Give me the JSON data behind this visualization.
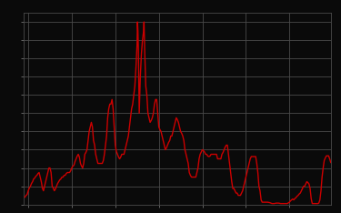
{
  "title": "",
  "background_color": "#0a0a0a",
  "plot_bg_color": "#0a0a0a",
  "line_color": "#cc0000",
  "line_width": 1.0,
  "grid_color": "#4a4a4a",
  "grid_linewidth": 0.6,
  "spine_color": "#4a4a4a",
  "ylim": [
    0,
    21
  ],
  "xlim": [
    1954.0,
    2024.5
  ],
  "yticks": [
    0,
    2,
    4,
    6,
    8,
    10,
    12,
    14,
    16,
    18,
    20
  ],
  "xticks": [
    1955,
    1965,
    1975,
    1985,
    1995,
    2005,
    2015
  ],
  "data": [
    [
      1954.25,
      0.8
    ],
    [
      1954.5,
      1.0
    ],
    [
      1954.75,
      1.1
    ],
    [
      1955.0,
      1.5
    ],
    [
      1955.25,
      1.8
    ],
    [
      1955.5,
      2.0
    ],
    [
      1955.75,
      2.3
    ],
    [
      1956.0,
      2.5
    ],
    [
      1956.25,
      2.8
    ],
    [
      1956.5,
      2.9
    ],
    [
      1956.75,
      3.1
    ],
    [
      1957.0,
      3.2
    ],
    [
      1957.25,
      3.4
    ],
    [
      1957.5,
      3.5
    ],
    [
      1957.75,
      3.0
    ],
    [
      1958.0,
      2.5
    ],
    [
      1958.25,
      1.8
    ],
    [
      1958.5,
      1.5
    ],
    [
      1958.75,
      2.0
    ],
    [
      1959.0,
      2.5
    ],
    [
      1959.25,
      3.0
    ],
    [
      1959.5,
      3.5
    ],
    [
      1959.75,
      4.0
    ],
    [
      1960.0,
      4.0
    ],
    [
      1960.25,
      3.5
    ],
    [
      1960.5,
      2.0
    ],
    [
      1960.75,
      1.8
    ],
    [
      1961.0,
      1.5
    ],
    [
      1961.25,
      1.7
    ],
    [
      1961.5,
      2.0
    ],
    [
      1961.75,
      2.3
    ],
    [
      1962.0,
      2.5
    ],
    [
      1962.25,
      2.7
    ],
    [
      1962.5,
      2.8
    ],
    [
      1962.75,
      3.0
    ],
    [
      1963.0,
      3.0
    ],
    [
      1963.25,
      3.2
    ],
    [
      1963.5,
      3.2
    ],
    [
      1963.75,
      3.4
    ],
    [
      1964.0,
      3.5
    ],
    [
      1964.25,
      3.5
    ],
    [
      1964.5,
      3.5
    ],
    [
      1964.75,
      3.7
    ],
    [
      1965.0,
      4.0
    ],
    [
      1965.25,
      4.2
    ],
    [
      1965.5,
      4.3
    ],
    [
      1965.75,
      4.7
    ],
    [
      1966.0,
      5.0
    ],
    [
      1966.25,
      5.3
    ],
    [
      1966.5,
      5.5
    ],
    [
      1966.75,
      5.2
    ],
    [
      1967.0,
      4.5
    ],
    [
      1967.25,
      4.2
    ],
    [
      1967.5,
      4.0
    ],
    [
      1967.75,
      4.5
    ],
    [
      1968.0,
      5.5
    ],
    [
      1968.25,
      5.7
    ],
    [
      1968.5,
      6.0
    ],
    [
      1968.75,
      7.0
    ],
    [
      1969.0,
      8.0
    ],
    [
      1969.25,
      8.5
    ],
    [
      1969.5,
      9.0
    ],
    [
      1969.75,
      8.5
    ],
    [
      1970.0,
      7.0
    ],
    [
      1970.25,
      6.5
    ],
    [
      1970.5,
      5.5
    ],
    [
      1970.75,
      5.0
    ],
    [
      1971.0,
      4.5
    ],
    [
      1971.25,
      4.5
    ],
    [
      1971.5,
      4.5
    ],
    [
      1971.75,
      4.5
    ],
    [
      1972.0,
      4.5
    ],
    [
      1972.25,
      4.8
    ],
    [
      1972.5,
      5.5
    ],
    [
      1972.75,
      6.5
    ],
    [
      1973.0,
      7.5
    ],
    [
      1973.25,
      9.5
    ],
    [
      1973.5,
      10.5
    ],
    [
      1973.75,
      11.0
    ],
    [
      1974.0,
      11.0
    ],
    [
      1974.25,
      11.5
    ],
    [
      1974.5,
      10.5
    ],
    [
      1974.75,
      8.5
    ],
    [
      1975.0,
      6.5
    ],
    [
      1975.25,
      5.8
    ],
    [
      1975.5,
      5.5
    ],
    [
      1975.75,
      5.2
    ],
    [
      1976.0,
      5.0
    ],
    [
      1976.25,
      5.2
    ],
    [
      1976.5,
      5.5
    ],
    [
      1976.75,
      5.5
    ],
    [
      1977.0,
      5.5
    ],
    [
      1977.25,
      6.0
    ],
    [
      1977.5,
      6.5
    ],
    [
      1977.75,
      7.0
    ],
    [
      1978.0,
      7.5
    ],
    [
      1978.25,
      8.5
    ],
    [
      1978.5,
      9.5
    ],
    [
      1978.75,
      10.5
    ],
    [
      1979.0,
      11.0
    ],
    [
      1979.25,
      12.0
    ],
    [
      1979.5,
      13.0
    ],
    [
      1979.75,
      15.0
    ],
    [
      1980.0,
      17.5
    ],
    [
      1980.1,
      20.0
    ],
    [
      1980.2,
      19.0
    ],
    [
      1980.3,
      17.0
    ],
    [
      1980.5,
      10.0
    ],
    [
      1980.75,
      14.0
    ],
    [
      1981.0,
      16.5
    ],
    [
      1981.25,
      18.0
    ],
    [
      1981.5,
      19.0
    ],
    [
      1981.6,
      20.0
    ],
    [
      1981.75,
      17.0
    ],
    [
      1982.0,
      13.0
    ],
    [
      1982.25,
      12.0
    ],
    [
      1982.5,
      10.0
    ],
    [
      1982.75,
      9.5
    ],
    [
      1983.0,
      9.0
    ],
    [
      1983.25,
      9.2
    ],
    [
      1983.5,
      9.5
    ],
    [
      1983.75,
      10.0
    ],
    [
      1984.0,
      11.0
    ],
    [
      1984.25,
      11.5
    ],
    [
      1984.5,
      11.5
    ],
    [
      1984.75,
      10.0
    ],
    [
      1985.0,
      8.5
    ],
    [
      1985.25,
      8.2
    ],
    [
      1985.5,
      8.0
    ],
    [
      1985.75,
      7.5
    ],
    [
      1986.0,
      7.0
    ],
    [
      1986.25,
      6.5
    ],
    [
      1986.5,
      6.0
    ],
    [
      1986.75,
      6.2
    ],
    [
      1987.0,
      6.5
    ],
    [
      1987.25,
      6.8
    ],
    [
      1987.5,
      7.0
    ],
    [
      1987.75,
      7.5
    ],
    [
      1988.0,
      7.5
    ],
    [
      1988.25,
      8.0
    ],
    [
      1988.5,
      8.5
    ],
    [
      1988.75,
      9.0
    ],
    [
      1989.0,
      9.5
    ],
    [
      1989.25,
      9.3
    ],
    [
      1989.5,
      9.0
    ],
    [
      1989.75,
      8.5
    ],
    [
      1990.0,
      8.0
    ],
    [
      1990.25,
      7.8
    ],
    [
      1990.5,
      7.5
    ],
    [
      1990.75,
      7.0
    ],
    [
      1991.0,
      6.0
    ],
    [
      1991.25,
      5.5
    ],
    [
      1991.5,
      5.0
    ],
    [
      1991.75,
      4.5
    ],
    [
      1992.0,
      3.5
    ],
    [
      1992.25,
      3.2
    ],
    [
      1992.5,
      3.0
    ],
    [
      1992.75,
      3.0
    ],
    [
      1993.0,
      3.0
    ],
    [
      1993.25,
      3.0
    ],
    [
      1993.5,
      3.0
    ],
    [
      1993.75,
      3.5
    ],
    [
      1994.0,
      4.0
    ],
    [
      1994.25,
      5.0
    ],
    [
      1994.5,
      5.5
    ],
    [
      1994.75,
      5.75
    ],
    [
      1995.0,
      6.0
    ],
    [
      1995.25,
      5.9
    ],
    [
      1995.5,
      5.75
    ],
    [
      1995.75,
      5.5
    ],
    [
      1996.0,
      5.5
    ],
    [
      1996.25,
      5.3
    ],
    [
      1996.5,
      5.25
    ],
    [
      1996.75,
      5.3
    ],
    [
      1997.0,
      5.5
    ],
    [
      1997.25,
      5.5
    ],
    [
      1997.5,
      5.5
    ],
    [
      1997.75,
      5.5
    ],
    [
      1998.0,
      5.5
    ],
    [
      1998.25,
      5.5
    ],
    [
      1998.5,
      5.0
    ],
    [
      1998.75,
      5.0
    ],
    [
      1999.0,
      5.0
    ],
    [
      1999.25,
      5.0
    ],
    [
      1999.5,
      5.5
    ],
    [
      1999.75,
      5.7
    ],
    [
      2000.0,
      6.0
    ],
    [
      2000.25,
      6.3
    ],
    [
      2000.5,
      6.5
    ],
    [
      2000.75,
      6.5
    ],
    [
      2001.0,
      5.5
    ],
    [
      2001.25,
      4.5
    ],
    [
      2001.5,
      3.5
    ],
    [
      2001.75,
      2.5
    ],
    [
      2002.0,
      1.75
    ],
    [
      2002.25,
      1.75
    ],
    [
      2002.5,
      1.5
    ],
    [
      2002.75,
      1.25
    ],
    [
      2003.0,
      1.25
    ],
    [
      2003.25,
      1.0
    ],
    [
      2003.5,
      1.0
    ],
    [
      2003.75,
      1.0
    ],
    [
      2004.0,
      1.25
    ],
    [
      2004.25,
      1.5
    ],
    [
      2004.5,
      2.0
    ],
    [
      2004.75,
      2.5
    ],
    [
      2005.0,
      3.0
    ],
    [
      2005.25,
      3.5
    ],
    [
      2005.5,
      4.0
    ],
    [
      2005.75,
      4.5
    ],
    [
      2006.0,
      5.0
    ],
    [
      2006.25,
      5.25
    ],
    [
      2006.5,
      5.25
    ],
    [
      2006.75,
      5.25
    ],
    [
      2007.0,
      5.25
    ],
    [
      2007.25,
      5.25
    ],
    [
      2007.5,
      4.5
    ],
    [
      2007.75,
      3.5
    ],
    [
      2008.0,
      2.0
    ],
    [
      2008.25,
      1.5
    ],
    [
      2008.5,
      0.5
    ],
    [
      2008.75,
      0.25
    ],
    [
      2009.0,
      0.25
    ],
    [
      2009.5,
      0.25
    ],
    [
      2010.0,
      0.25
    ],
    [
      2010.5,
      0.2
    ],
    [
      2011.0,
      0.1
    ],
    [
      2011.5,
      0.1
    ],
    [
      2012.0,
      0.15
    ],
    [
      2012.5,
      0.15
    ],
    [
      2013.0,
      0.1
    ],
    [
      2013.5,
      0.1
    ],
    [
      2014.0,
      0.1
    ],
    [
      2014.5,
      0.1
    ],
    [
      2015.0,
      0.25
    ],
    [
      2015.25,
      0.4
    ],
    [
      2015.5,
      0.5
    ],
    [
      2015.75,
      0.6
    ],
    [
      2016.0,
      0.5
    ],
    [
      2016.25,
      0.65
    ],
    [
      2016.5,
      0.75
    ],
    [
      2016.75,
      0.9
    ],
    [
      2017.0,
      1.0
    ],
    [
      2017.25,
      1.15
    ],
    [
      2017.5,
      1.25
    ],
    [
      2017.75,
      1.5
    ],
    [
      2018.0,
      1.75
    ],
    [
      2018.25,
      2.0
    ],
    [
      2018.5,
      2.0
    ],
    [
      2018.75,
      2.25
    ],
    [
      2019.0,
      2.5
    ],
    [
      2019.25,
      2.4
    ],
    [
      2019.5,
      2.25
    ],
    [
      2019.75,
      1.75
    ],
    [
      2020.0,
      0.65
    ],
    [
      2020.25,
      0.1
    ],
    [
      2020.5,
      0.1
    ],
    [
      2020.75,
      0.1
    ],
    [
      2021.0,
      0.1
    ],
    [
      2021.25,
      0.1
    ],
    [
      2021.5,
      0.1
    ],
    [
      2021.75,
      0.15
    ],
    [
      2022.0,
      0.5
    ],
    [
      2022.25,
      1.5
    ],
    [
      2022.5,
      3.0
    ],
    [
      2022.75,
      4.0
    ],
    [
      2023.0,
      4.83
    ],
    [
      2023.25,
      5.1
    ],
    [
      2023.5,
      5.33
    ],
    [
      2023.75,
      5.33
    ],
    [
      2024.0,
      5.33
    ],
    [
      2024.25,
      5.0
    ],
    [
      2024.5,
      4.6
    ]
  ]
}
